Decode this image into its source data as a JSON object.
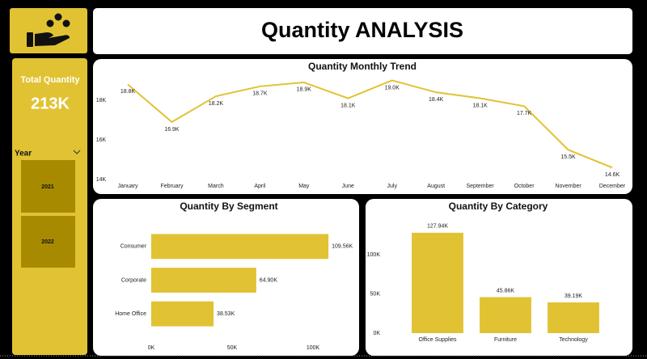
{
  "header": {
    "title": "Quantity ANALYSIS"
  },
  "kpi": {
    "label": "Total Quantity",
    "value": "213K"
  },
  "filter": {
    "label": "Year",
    "options": [
      "2021",
      "2022"
    ]
  },
  "chart_data": [
    {
      "type": "line",
      "title": "Quantity Monthly Trend",
      "categories": [
        "January",
        "February",
        "March",
        "April",
        "May",
        "June",
        "July",
        "August",
        "September",
        "October",
        "November",
        "December"
      ],
      "values": [
        18800,
        16900,
        18200,
        18700,
        18900,
        18100,
        19000,
        18400,
        18100,
        17700,
        15500,
        14600
      ],
      "value_labels": [
        "18.8K",
        "16.9K",
        "18.2K",
        "18.7K",
        "18.9K",
        "18.1K",
        "19.0K",
        "18.4K",
        "18.1K",
        "17.7K",
        "15.5K",
        "14.6K"
      ],
      "color": "#e1c233",
      "ylim": [
        14000,
        19100
      ],
      "yticks": [
        {
          "value": 14000,
          "label": "14K"
        },
        {
          "value": 16000,
          "label": "16K"
        },
        {
          "value": 18000,
          "label": "18K"
        }
      ],
      "grid": false
    },
    {
      "type": "bar",
      "orientation": "horizontal",
      "title": "Quantity By Segment",
      "categories": [
        "Consumer",
        "Corporate",
        "Home Office"
      ],
      "values": [
        109560,
        64900,
        38530
      ],
      "value_labels": [
        "109.56K",
        "64.90K",
        "38.53K"
      ],
      "color": "#e1c233",
      "xlim": [
        0,
        115000
      ],
      "xticks": [
        {
          "value": 0,
          "label": "0K"
        },
        {
          "value": 50000,
          "label": "50K"
        },
        {
          "value": 100000,
          "label": "100K"
        }
      ],
      "grid": false
    },
    {
      "type": "bar",
      "orientation": "vertical",
      "title": "Quantity By Category",
      "categories": [
        "Office Supplies",
        "Furniture",
        "Technology"
      ],
      "values": [
        127940,
        45860,
        39190
      ],
      "value_labels": [
        "127.94K",
        "45.86K",
        "39.19K"
      ],
      "color": "#e1c233",
      "ylim": [
        0,
        135000
      ],
      "yticks": [
        {
          "value": 0,
          "label": "0K"
        },
        {
          "value": 50000,
          "label": "50K"
        },
        {
          "value": 100000,
          "label": "100K"
        }
      ],
      "grid": false
    }
  ]
}
